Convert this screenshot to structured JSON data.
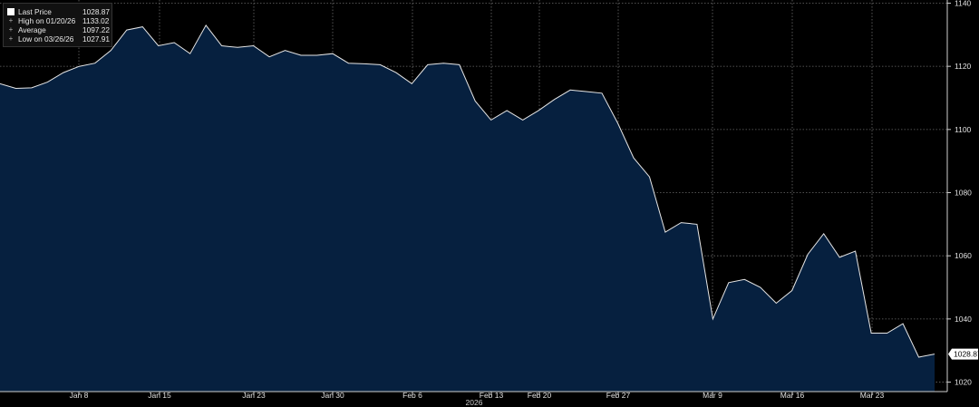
{
  "chart_data": {
    "type": "area",
    "x_axis_label": "2026",
    "x_tick_labels": [
      "Jan 8",
      "Jan 15",
      "Jan 23",
      "Jan 30",
      "Feb 6",
      "Feb 13",
      "Feb 20",
      "Feb 27",
      "Mar 9",
      "Mar 16",
      "Mar 23"
    ],
    "y_ticks": [
      1020,
      1040,
      1060,
      1080,
      1100,
      1120,
      1140
    ],
    "ylim": [
      1017,
      1141
    ],
    "grid": true,
    "legend_position": "top-left",
    "last_price_label": "1028.87",
    "colors": {
      "background": "#000000",
      "fill": "#06203f",
      "line": "#e6e6e6",
      "grid": "#6a6a6a"
    },
    "legend": [
      {
        "icon": "box-icon",
        "label": "Last Price",
        "value": "1028.87"
      },
      {
        "icon": "high-marker-icon",
        "label": "High on 01/20/26",
        "value": "1133.02"
      },
      {
        "icon": "average-marker-icon",
        "label": "Average",
        "value": "1097.22"
      },
      {
        "icon": "low-marker-icon",
        "label": "Low on 03/26/26",
        "value": "1027.91"
      }
    ],
    "series": [
      {
        "values": [
          1114.5,
          1113.0,
          1113.2,
          1115.0,
          1118.0,
          1120.0,
          1121.0,
          1125.0,
          1131.5,
          1132.5,
          1126.5,
          1127.5,
          1124.0,
          1133.0,
          1126.5,
          1126.0,
          1126.5,
          1123.0,
          1125.0,
          1123.5,
          1123.5,
          1124.0,
          1121.0,
          1120.8,
          1120.5,
          1118.0,
          1114.5,
          1120.5,
          1121.0,
          1120.5,
          1109.0,
          1103.0,
          1106.0,
          1103.0,
          1106.0,
          1109.5,
          1112.5,
          1112.0,
          1111.5,
          1102.0,
          1091.0,
          1085.0,
          1067.5,
          1070.5,
          1070.0,
          1040.0,
          1051.5,
          1052.5,
          1050.0,
          1045.0,
          1049.0,
          1060.5,
          1067.0,
          1059.5,
          1061.5,
          1035.5,
          1035.5,
          1038.5,
          1027.91,
          1028.87
        ]
      }
    ]
  }
}
